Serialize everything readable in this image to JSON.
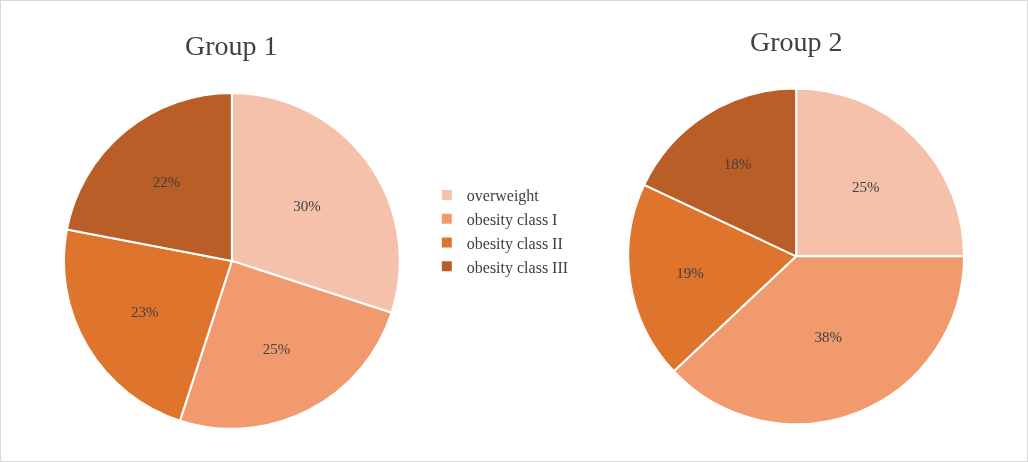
{
  "chart_data": [
    {
      "type": "pie",
      "title": "Group 1",
      "categories": [
        "overweight",
        "obesity class I",
        "obesity class II",
        "obesity class III"
      ],
      "values": [
        30,
        25,
        23,
        22
      ],
      "value_labels": [
        "30%",
        "25%",
        "23%",
        "22%"
      ],
      "colors": [
        "#f5c1aa",
        "#f19a6d",
        "#df742d",
        "#b95e27"
      ],
      "legend": "right"
    },
    {
      "type": "pie",
      "title": "Group 2",
      "categories": [
        null,
        null,
        null,
        null
      ],
      "values": [
        25,
        38,
        19,
        18
      ],
      "value_labels": [
        "25%",
        "38%",
        "19%",
        "18%"
      ],
      "colors": [
        "#f5c1aa",
        "#f19a6d",
        "#df742d",
        "#b95e27"
      ]
    }
  ]
}
